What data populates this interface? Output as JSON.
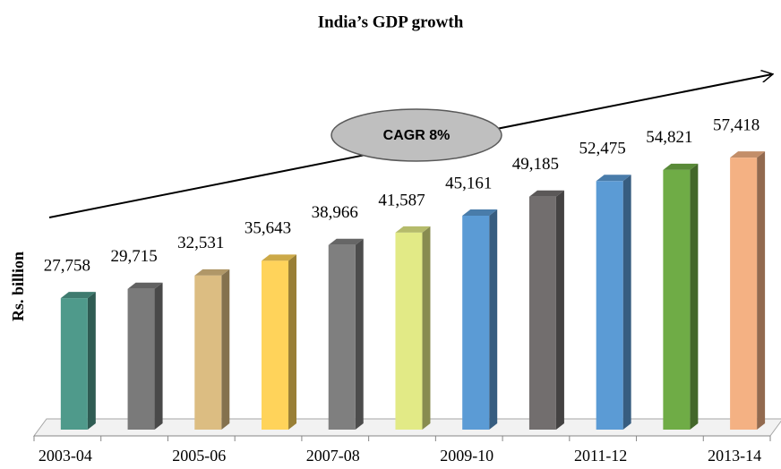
{
  "chart_data": {
    "type": "bar3d",
    "title": "India’s GDP growth",
    "y_label": "Rs. billion",
    "annotation": "CAGR 8%",
    "categories": [
      "2003-04",
      null,
      "2005-06",
      null,
      "2007-08",
      null,
      "2009-10",
      null,
      "2011-12",
      null,
      "2013-14"
    ],
    "values": [
      27758,
      29715,
      32531,
      35643,
      38966,
      41587,
      45161,
      49185,
      52475,
      54821,
      57418
    ],
    "value_labels": [
      "27,758",
      "29,715",
      "32,531",
      "35,643",
      "38,966",
      "41,587",
      "45,161",
      "49,185",
      "52,475",
      "54,821",
      "57,418"
    ],
    "colors": [
      "#4f9a8b",
      "#7a7a7a",
      "#dcbd82",
      "#ffd35a",
      "#7f7f7f",
      "#e2ea86",
      "#5b9bd5",
      "#726e6e",
      "#5b9bd5",
      "#6fac46",
      "#f4b183"
    ],
    "ylim": [
      0,
      65000
    ]
  }
}
